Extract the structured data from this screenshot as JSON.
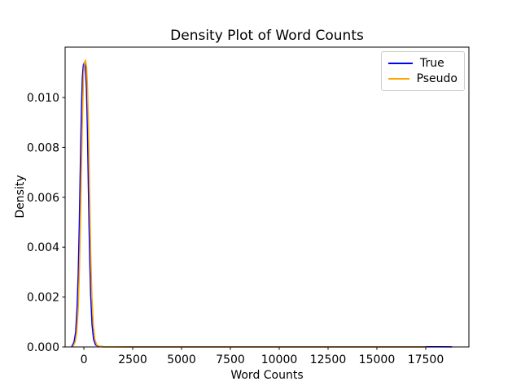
{
  "chart_data": {
    "type": "line",
    "subtype": "kde-density",
    "title": "Density Plot of Word Counts",
    "xlabel": "Word Counts",
    "ylabel": "Density",
    "xlim": [
      -960,
      19710
    ],
    "ylim": [
      0,
      0.01202
    ],
    "grid": false,
    "legend_position": "upper right",
    "xticks": [
      0,
      2500,
      5000,
      7500,
      10000,
      12500,
      15000,
      17500
    ],
    "xtick_labels": [
      "0",
      "2500",
      "5000",
      "7500",
      "10000",
      "12500",
      "15000",
      "17500"
    ],
    "yticks": [
      0,
      0.002,
      0.004,
      0.006,
      0.008,
      0.01
    ],
    "ytick_labels": [
      "0.000",
      "0.002",
      "0.004",
      "0.006",
      "0.008",
      "0.010"
    ],
    "axis_color": "#000000",
    "background_color": "#ffffff",
    "series": [
      {
        "name": "True",
        "color": "#0000ff",
        "peak": {
          "x": 30,
          "y": 0.0114
        },
        "points": [
          [
            -620,
            1e-05
          ],
          [
            -500,
            0.0002
          ],
          [
            -420,
            0.0006
          ],
          [
            -350,
            0.0015
          ],
          [
            -290,
            0.0029
          ],
          [
            -230,
            0.005
          ],
          [
            -175,
            0.0074
          ],
          [
            -125,
            0.0094
          ],
          [
            -75,
            0.0108
          ],
          [
            -25,
            0.0113
          ],
          [
            30,
            0.0114
          ],
          [
            85,
            0.0112
          ],
          [
            135,
            0.0103
          ],
          [
            185,
            0.0086
          ],
          [
            235,
            0.0062
          ],
          [
            290,
            0.0039
          ],
          [
            350,
            0.0021
          ],
          [
            420,
            0.0009
          ],
          [
            500,
            0.0003
          ],
          [
            600,
            8e-05
          ],
          [
            750,
            2e-05
          ],
          [
            1000,
            8e-06
          ],
          [
            1500,
            5e-06
          ],
          [
            2500,
            4e-06
          ],
          [
            4000,
            3e-06
          ],
          [
            6000,
            3e-06
          ],
          [
            8000,
            3e-06
          ],
          [
            10000,
            3e-06
          ],
          [
            12000,
            3e-06
          ],
          [
            14000,
            3e-06
          ],
          [
            16000,
            3e-06
          ],
          [
            17000,
            4e-06
          ],
          [
            17800,
            6e-06
          ],
          [
            18300,
            7e-06
          ],
          [
            18830,
            3e-06
          ]
        ]
      },
      {
        "name": "Pseudo",
        "color": "#ffa500",
        "peak": {
          "x": 85,
          "y": 0.0115
        },
        "points": [
          [
            -560,
            1e-05
          ],
          [
            -445,
            0.0002
          ],
          [
            -365,
            0.0006
          ],
          [
            -295,
            0.0015
          ],
          [
            -235,
            0.0029
          ],
          [
            -175,
            0.005
          ],
          [
            -120,
            0.0074
          ],
          [
            -70,
            0.0094
          ],
          [
            -20,
            0.0109
          ],
          [
            30,
            0.0114
          ],
          [
            85,
            0.0115
          ],
          [
            140,
            0.0112
          ],
          [
            190,
            0.0103
          ],
          [
            240,
            0.0086
          ],
          [
            295,
            0.0061
          ],
          [
            350,
            0.0038
          ],
          [
            410,
            0.002
          ],
          [
            480,
            0.0009
          ],
          [
            560,
            0.0003
          ],
          [
            660,
            8e-05
          ],
          [
            810,
            2e-05
          ],
          [
            1100,
            8e-06
          ],
          [
            1600,
            5e-06
          ],
          [
            2600,
            4e-06
          ],
          [
            4000,
            3e-06
          ],
          [
            6000,
            3e-06
          ],
          [
            8000,
            3e-06
          ],
          [
            10000,
            3e-06
          ],
          [
            12000,
            3e-06
          ],
          [
            14000,
            3e-06
          ],
          [
            16000,
            3e-06
          ],
          [
            17500,
            2e-06
          ]
        ]
      }
    ]
  }
}
